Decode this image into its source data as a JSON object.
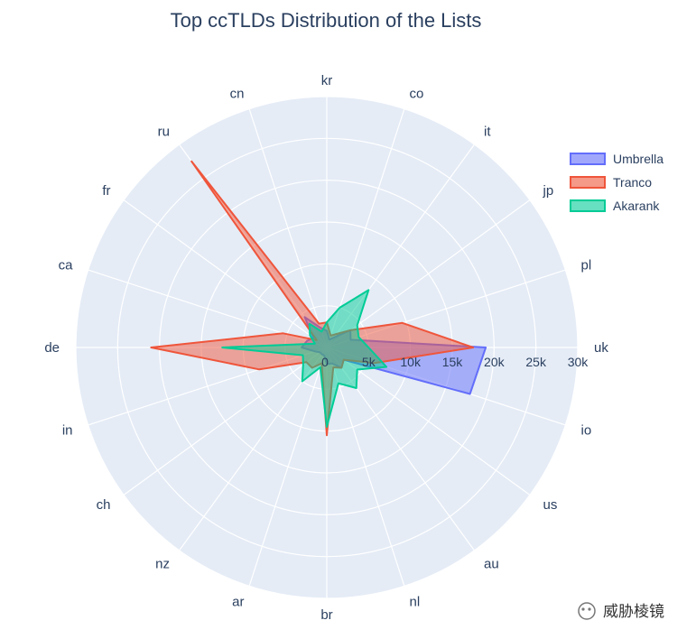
{
  "chart_data": {
    "type": "radar",
    "title": "Top ccTLDs Distribution of the Lists",
    "categories": [
      "uk",
      "pl",
      "jp",
      "it",
      "co",
      "kr",
      "cn",
      "ru",
      "fr",
      "ca",
      "de",
      "in",
      "ch",
      "nz",
      "ar",
      "br",
      "nl",
      "au",
      "us",
      "io"
    ],
    "radial_ticks": [
      "0",
      "5k",
      "10k",
      "15k",
      "20k",
      "25k",
      "30k"
    ],
    "radial_range": [
      0,
      30000
    ],
    "legend_position": "top-right",
    "series": [
      {
        "name": "Umbrella",
        "color": "#636efa",
        "values": [
          19000,
          3000,
          3500,
          1500,
          1000,
          2000,
          2500,
          4500,
          2000,
          2500,
          3000,
          1500,
          1000,
          1000,
          1000,
          2000,
          2000,
          3000,
          2500,
          18000
        ]
      },
      {
        "name": "Tranco",
        "color": "#ef553b",
        "values": [
          17500,
          9500,
          3500,
          2000,
          1500,
          3000,
          3000,
          27500,
          1500,
          5500,
          21000,
          8500,
          3000,
          3000,
          2000,
          10500,
          2500,
          3000,
          2500,
          6000
        ]
      },
      {
        "name": "Akarank",
        "color": "#00cc96",
        "values": [
          5000,
          4000,
          4500,
          8500,
          5000,
          3000,
          2000,
          3500,
          2500,
          1500,
          12500,
          3000,
          3500,
          5000,
          2500,
          9500,
          4500,
          6000,
          4500,
          7500
        ]
      }
    ]
  },
  "watermark": {
    "text": "威胁棱镜"
  }
}
